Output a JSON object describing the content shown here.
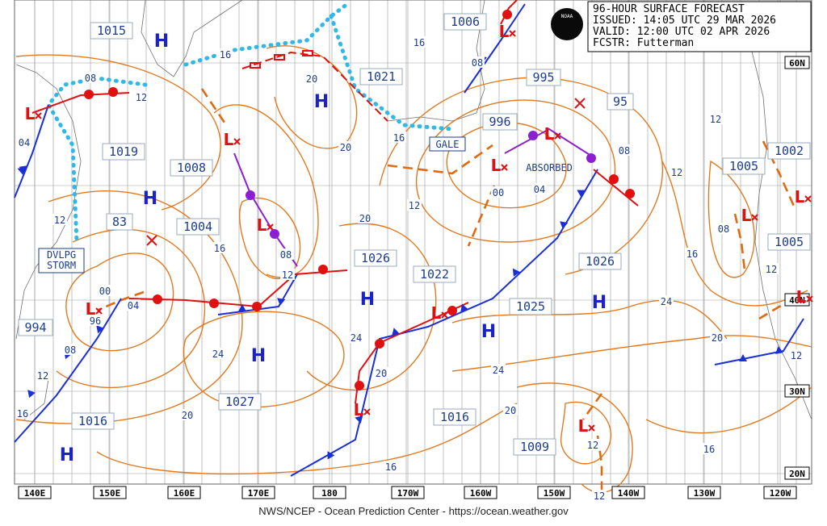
{
  "header": {
    "lines": [
      "96-HOUR SURFACE FORECAST",
      "ISSUED: 14:05 UTC 29 MAR 2026",
      "VALID:  12:00 UTC 02 APR 2026",
      "FCSTR:  Futterman"
    ],
    "logo": "NOAA"
  },
  "footer": "NWS/NCEP - Ocean Prediction Center - https://ocean.weather.gov",
  "longitude_labels": [
    "140E",
    "150E",
    "160E",
    "170E",
    "180",
    "170W",
    "160W",
    "150W",
    "140W",
    "130W",
    "120W"
  ],
  "latitude_labels": [
    "60N",
    "40N",
    "30N",
    "20N"
  ],
  "pressure_centers": [
    "1015",
    "1019",
    "1008",
    "1004",
    "83",
    "994",
    "1016",
    "1027",
    "1026",
    "1022",
    "1025",
    "1016",
    "1009",
    "1026",
    "1005",
    "1005",
    "1002",
    "95",
    "996",
    "995",
    "1021",
    "1006"
  ],
  "high_symbol": "H",
  "low_symbol": "L",
  "isobar_labels": [
    "08",
    "12",
    "04",
    "12",
    "00",
    "04",
    "96",
    "08",
    "12",
    "16",
    "16",
    "20",
    "20",
    "16",
    "16",
    "08",
    "08",
    "12",
    "16",
    "20",
    "12",
    "00",
    "04",
    "08",
    "12",
    "12",
    "16",
    "08",
    "12",
    "12",
    "24",
    "20",
    "24",
    "24",
    "24",
    "20",
    "20",
    "20",
    "16",
    "16",
    "12",
    "12"
  ],
  "gale_label": "GALE",
  "storm_label": [
    "DVLPG",
    "STORM"
  ],
  "absorbed_label": "ABSORBED"
}
